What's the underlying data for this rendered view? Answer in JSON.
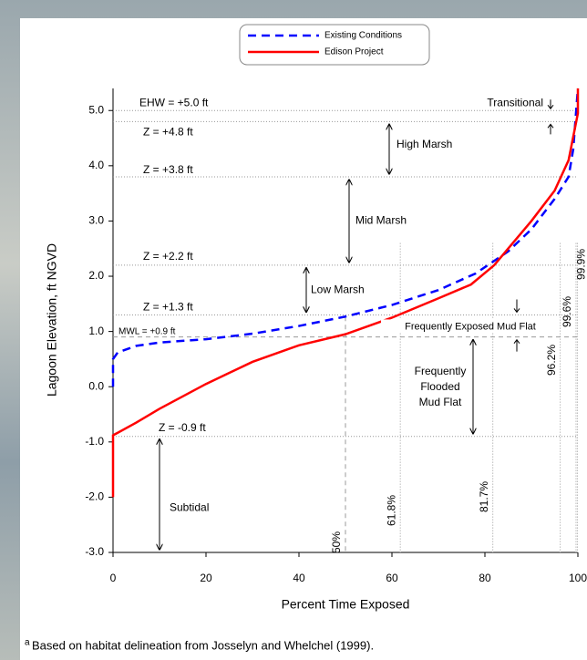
{
  "chart_data": {
    "type": "line",
    "x_label": "Percent Time Exposed",
    "y_label": "Lagoon Elevation, ft NGVD",
    "footnote_marker": "a",
    "footnote": "Based on habitat delineation from Josselyn and Whelchel (1999).",
    "xlim": [
      0,
      100
    ],
    "ylim": [
      -3,
      5.4
    ],
    "xticks": [
      0,
      20,
      40,
      60,
      80,
      100
    ],
    "yticks": [
      {
        "value": 5,
        "label": "5.0"
      },
      {
        "value": 4,
        "label": "4.0"
      },
      {
        "value": 3,
        "label": "3.0"
      },
      {
        "value": 2,
        "label": "2.0"
      },
      {
        "value": 1,
        "label": "1.0"
      },
      {
        "value": 0,
        "label": "0.0"
      },
      {
        "value": -1,
        "label": "-1.0"
      },
      {
        "value": -2,
        "label": "-2.0"
      },
      {
        "value": -3,
        "label": "-3.0"
      }
    ],
    "legend": "top",
    "series": [
      {
        "name": "Existing Conditions",
        "color": "#0000ff",
        "dash": true,
        "x": [
          0,
          0,
          1,
          5,
          10,
          20,
          30,
          40,
          50,
          60,
          70,
          78,
          85,
          90,
          95,
          98,
          99,
          100
        ],
        "values": [
          0,
          0.5,
          0.62,
          0.74,
          0.8,
          0.86,
          0.96,
          1.1,
          1.27,
          1.48,
          1.75,
          2.05,
          2.45,
          2.85,
          3.4,
          3.8,
          4.3,
          5.4
        ]
      },
      {
        "name": "Edison Project",
        "color": "#ff0000",
        "dash": false,
        "x": [
          0,
          0,
          5,
          10,
          20,
          30,
          40,
          50,
          60,
          70,
          77,
          82,
          85,
          90,
          95,
          98,
          100,
          100
        ],
        "values": [
          -2,
          -0.88,
          -0.65,
          -0.4,
          0.05,
          0.45,
          0.75,
          0.95,
          1.25,
          1.6,
          1.85,
          2.2,
          2.5,
          3.0,
          3.55,
          4.1,
          4.95,
          5.4
        ]
      }
    ],
    "reference_lines": [
      {
        "value": 5.0,
        "label": "EHW = +5.0 ft"
      },
      {
        "value": 4.8,
        "label": "Z = +4.8 ft"
      },
      {
        "value": 3.8,
        "label": "Z = +3.8 ft"
      },
      {
        "value": 2.2,
        "label": "Z = +2.2 ft"
      },
      {
        "value": 1.3,
        "label": "Z = +1.3 ft"
      },
      {
        "value": 0.9,
        "label": "MWL = +0.9 ft"
      },
      {
        "value": -0.9,
        "label": "Z = -0.9 ft"
      }
    ],
    "vertical_lines": [
      {
        "value": 50,
        "label": "50%"
      },
      {
        "value": 61.8,
        "label": "61.8%"
      },
      {
        "value": 81.7,
        "label": "81.7%"
      },
      {
        "value": 96.2,
        "label": "96.2%"
      },
      {
        "value": 99.6,
        "label": "99.6%"
      },
      {
        "value": 99.9,
        "label": "99.9%"
      }
    ],
    "zones": [
      "Transitional",
      "High Marsh",
      "Mid Marsh",
      "Low Marsh",
      "Frequently Exposed Mud Flat",
      [
        "Frequently",
        "Flooded",
        "Mud Flat"
      ],
      "Subtidal"
    ]
  }
}
